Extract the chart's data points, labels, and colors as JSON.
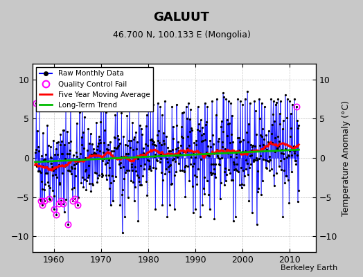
{
  "title": "GALUUT",
  "subtitle": "46.700 N, 100.133 E (Mongolia)",
  "ylabel": "Temperature Anomaly (°C)",
  "credit": "Berkeley Earth",
  "ylim": [
    -12,
    12
  ],
  "xlim": [
    1955.5,
    2015.5
  ],
  "yticks": [
    -10,
    -5,
    0,
    5,
    10
  ],
  "xticks": [
    1960,
    1970,
    1980,
    1990,
    2000,
    2010
  ],
  "raw_color": "#0000ff",
  "raw_dot_color": "#000000",
  "qc_color": "#ff00ff",
  "moving_avg_color": "#ff0000",
  "trend_color": "#00bb00",
  "background_color": "#ffffff",
  "outer_background": "#c8c8c8",
  "seed": 42,
  "n_months": 672,
  "start_year": 1956.0,
  "trend_slope": 0.028,
  "trend_intercept": -0.55,
  "noise_std": 2.5
}
